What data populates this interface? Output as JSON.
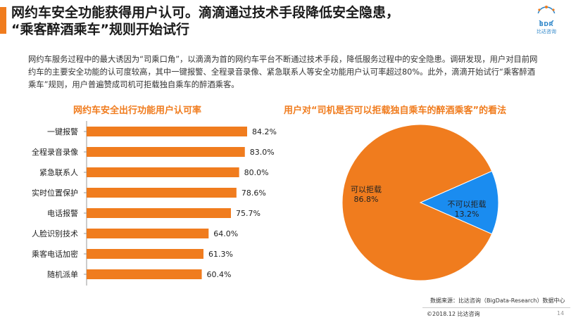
{
  "header": {
    "title_line1": "网约车安全功能获得用户认可。滴滴通过技术手段降低安全隐患，",
    "title_line2": "“乘客醉酒乘车”规则开始试行"
  },
  "logo": {
    "text": "BDR",
    "subtitle": "比达咨询"
  },
  "description": "网约车服务过程中的最大诱因为“司乘口角”，以滴滴为首的网约车平台不断通过技术手段，降低服务过程中的安全隐患。调研发现，用户对目前网约车的主要安全功能的认可度较高，其中一键报警、全程录音录像、紧急联系人等安全功能用户认可率超过80%。此外，滴滴开始试行“乘客醉酒乘车”规则，用户普遍赞成司机可拒载独自乘车的醉酒乘客。",
  "colors": {
    "accent": "#f07c1e",
    "blue": "#1a8cf0"
  },
  "chart_data": [
    {
      "type": "bar",
      "orientation": "horizontal",
      "title": "网约车安全出行功能用户认可率",
      "categories": [
        "一键报警",
        "全程录音录像",
        "紧急联系人",
        "实时位置保护",
        "电话报警",
        "人脸识别技术",
        "乘客电话加密",
        "随机派单"
      ],
      "values": [
        84.2,
        83.0,
        80.0,
        78.6,
        75.7,
        64.0,
        61.3,
        60.4
      ],
      "labels": [
        "84.2%",
        "83.0%",
        "80.0%",
        "78.6%",
        "75.7%",
        "64.0%",
        "61.3%",
        "60.4%"
      ],
      "unit": "%",
      "color": "#f07c1e"
    },
    {
      "type": "pie",
      "title": "用户对“司机是否可以拒载独自乘车的醉酒乘客”的看法",
      "slices": [
        {
          "name": "可以拒载",
          "value": 86.8,
          "label": "86.8%",
          "color": "#f07c1e"
        },
        {
          "name": "不可以拒载",
          "value": 13.2,
          "label": "13.2%",
          "color": "#1a8cf0"
        }
      ]
    }
  ],
  "footer": {
    "source": "数据来源：比达咨询（BigData-Research）数据中心",
    "copyright": "©2018.12 比达咨询",
    "page": "14"
  }
}
